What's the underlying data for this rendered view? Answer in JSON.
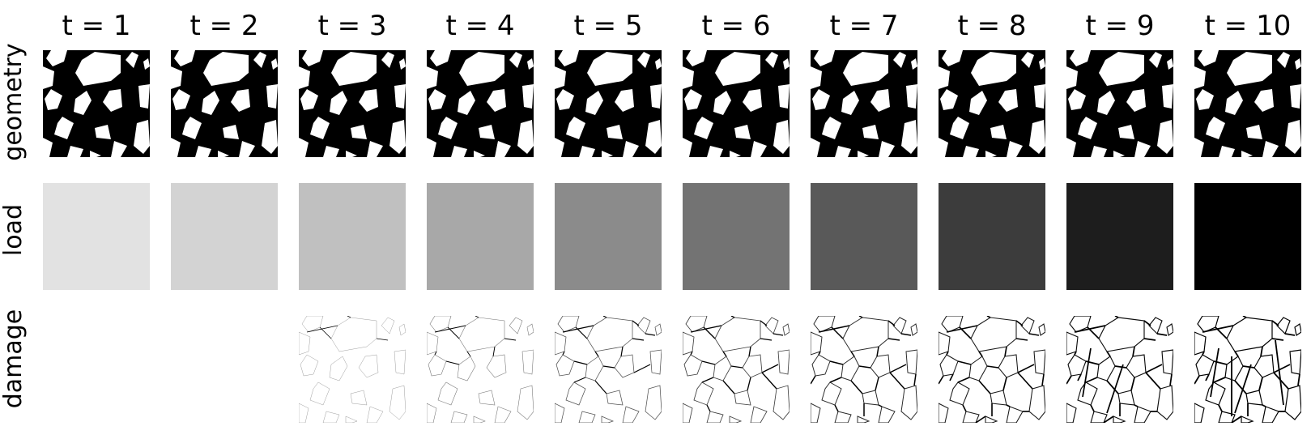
{
  "columns": [
    "t = 1",
    "t = 2",
    "t = 3",
    "t = 4",
    "t = 5",
    "t = 6",
    "t = 7",
    "t = 8",
    "t = 9",
    "t = 10"
  ],
  "rows": {
    "geometry": "geometry",
    "load": "load",
    "damage": "damage"
  },
  "load_levels": [
    0.06,
    0.12,
    0.2,
    0.3,
    0.42,
    0.52,
    0.63,
    0.75,
    0.88,
    1.0
  ],
  "damage_levels": [
    0.0,
    0.0,
    0.15,
    0.3,
    0.5,
    0.62,
    0.75,
    0.85,
    0.93,
    1.0
  ],
  "colors": {
    "background": "#ffffff",
    "solid": "#000000",
    "inclusion": "#ffffff",
    "crack": "#000000"
  }
}
